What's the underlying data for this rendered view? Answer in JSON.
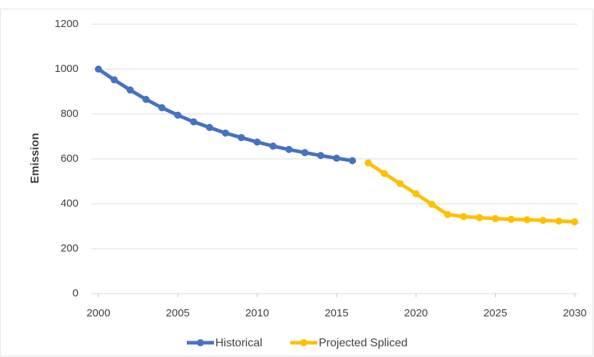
{
  "chart_data": {
    "type": "line",
    "y_label": "Emission",
    "x": [
      2000,
      2001,
      2002,
      2003,
      2004,
      2005,
      2006,
      2007,
      2008,
      2009,
      2010,
      2011,
      2012,
      2013,
      2014,
      2015,
      2016,
      2017,
      2018,
      2019,
      2020,
      2021,
      2022,
      2023,
      2024,
      2025,
      2026,
      2027,
      2028,
      2029,
      2030
    ],
    "series": [
      {
        "name": "Historical",
        "color": "#4472c4",
        "values": [
          1000,
          952,
          907,
          865,
          828,
          795,
          765,
          740,
          715,
          695,
          675,
          657,
          642,
          628,
          615,
          603,
          592,
          null,
          null,
          null,
          null,
          null,
          null,
          null,
          null,
          null,
          null,
          null,
          null,
          null,
          null
        ]
      },
      {
        "name": "Projected Spliced",
        "color": "#ffc000",
        "values": [
          null,
          null,
          null,
          null,
          null,
          null,
          null,
          null,
          null,
          null,
          null,
          null,
          null,
          null,
          null,
          null,
          null,
          582,
          535,
          490,
          445,
          398,
          352,
          343,
          338,
          334,
          331,
          329,
          326,
          323,
          320
        ]
      }
    ],
    "xlim": [
      2000,
      2030
    ],
    "xticks": [
      2000,
      2005,
      2010,
      2015,
      2020,
      2025,
      2030
    ],
    "ylim": [
      0,
      1200
    ],
    "yticks": [
      0,
      200,
      400,
      600,
      800,
      1000,
      1200
    ],
    "grid": true,
    "legend": "bottom"
  }
}
